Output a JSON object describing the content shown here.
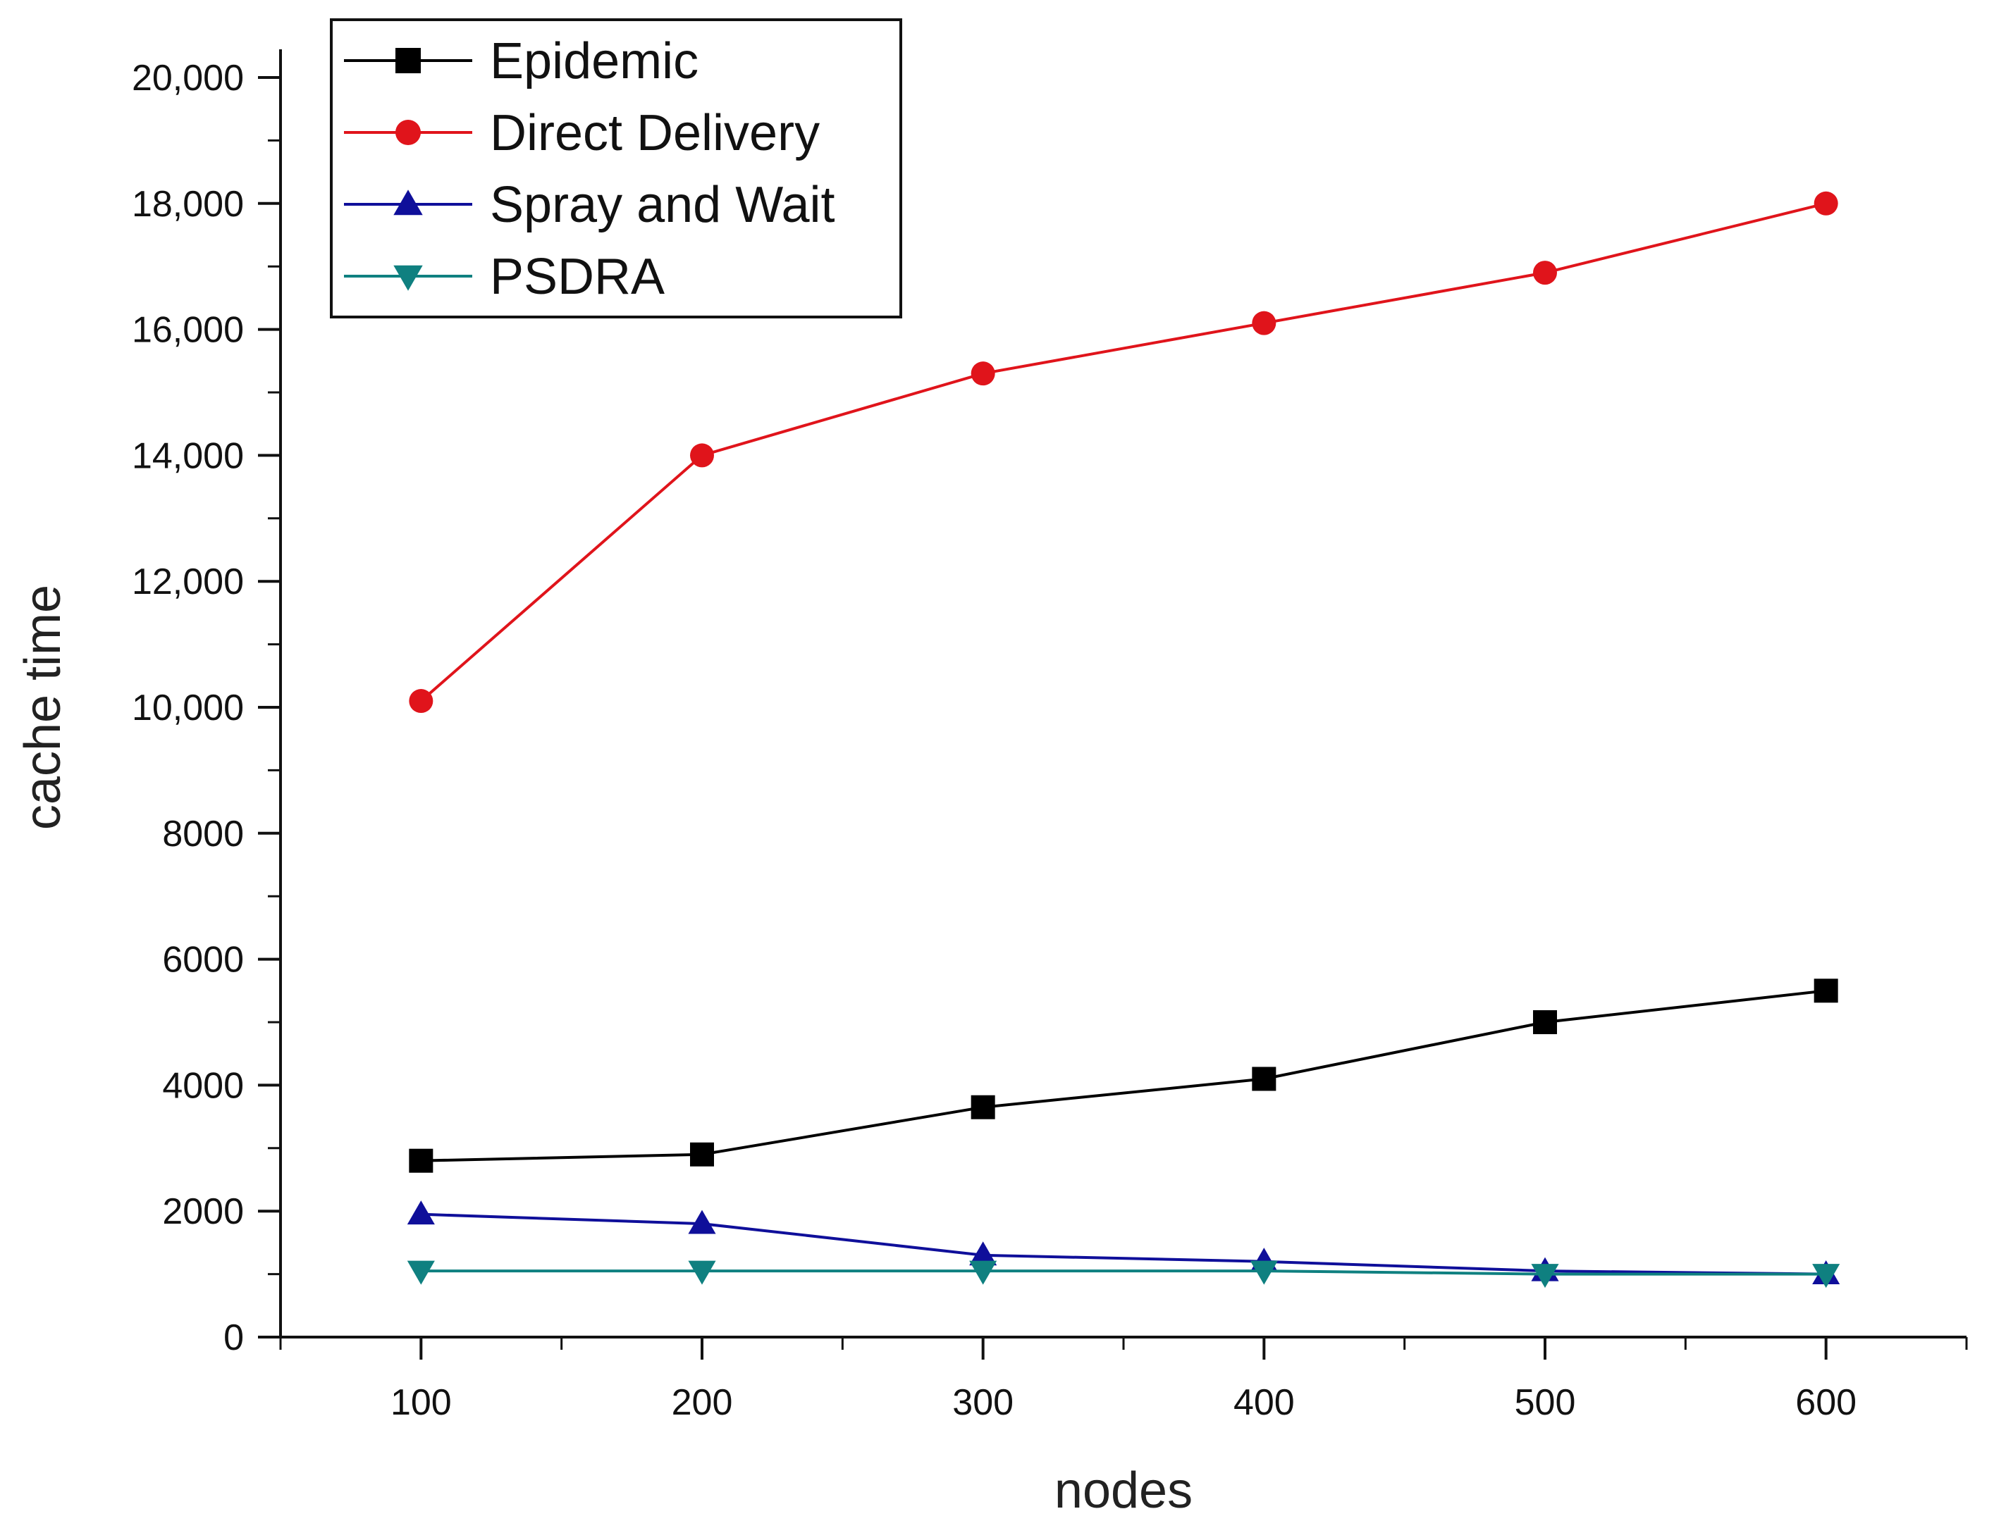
{
  "chart_data": {
    "type": "line",
    "title": "",
    "xlabel": "nodes",
    "ylabel": "cache time",
    "x": [
      100,
      200,
      300,
      400,
      500,
      600
    ],
    "xlim": [
      50,
      650
    ],
    "ylim": [
      0,
      20000
    ],
    "x_ticks": [
      100,
      200,
      300,
      400,
      500,
      600
    ],
    "x_tick_labels": [
      "100",
      "200",
      "300",
      "400",
      "500",
      "600"
    ],
    "y_ticks": [
      0,
      2000,
      4000,
      6000,
      8000,
      10000,
      12000,
      14000,
      16000,
      18000,
      20000
    ],
    "y_tick_labels": [
      "0",
      "2000",
      "4000",
      "6000",
      "8000",
      "10,000",
      "12,000",
      "14,000",
      "16,000",
      "18,000",
      "20,000"
    ],
    "grid": false,
    "legend_position": "top-left",
    "series": [
      {
        "name": "Epidemic",
        "color": "#000000",
        "marker": "square",
        "values": [
          2800,
          2900,
          3650,
          4100,
          5000,
          5500
        ]
      },
      {
        "name": "Direct Delivery",
        "color": "#e0141b",
        "marker": "circle",
        "values": [
          10100,
          14000,
          15300,
          16100,
          16900,
          18000
        ]
      },
      {
        "name": "Spray and Wait",
        "color": "#0f0f9a",
        "marker": "triangle-up",
        "values": [
          1950,
          1800,
          1300,
          1200,
          1050,
          1000
        ]
      },
      {
        "name": "PSDRA",
        "color": "#0f8080",
        "marker": "triangle-down",
        "values": [
          1050,
          1050,
          1050,
          1050,
          1000,
          1000
        ]
      }
    ]
  }
}
